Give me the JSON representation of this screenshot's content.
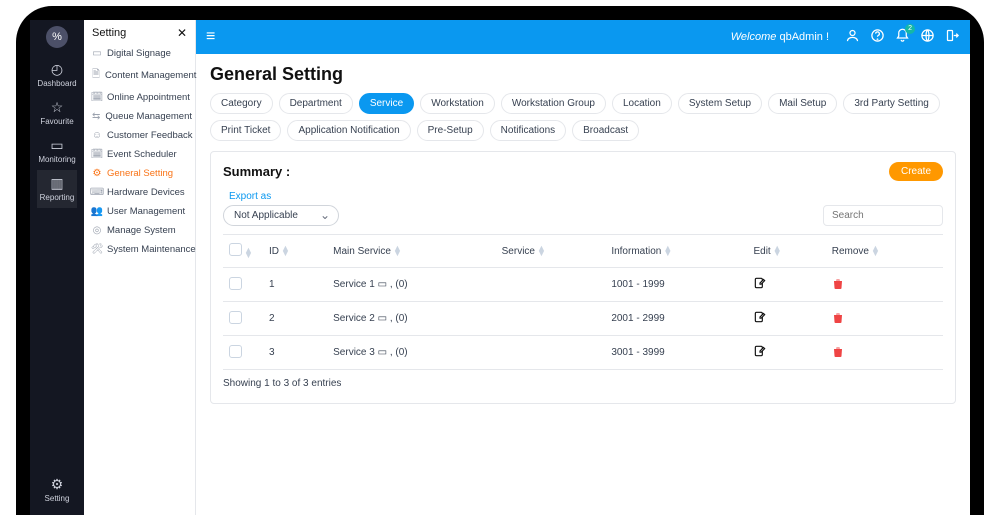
{
  "rail": {
    "items": [
      {
        "icon": "◴",
        "label": "Dashboard"
      },
      {
        "icon": "☆",
        "label": "Favourite"
      },
      {
        "icon": "▭",
        "label": "Monitoring"
      },
      {
        "icon": "▥",
        "label": "Reporting"
      }
    ],
    "bottom": {
      "icon": "⚙",
      "label": "Setting"
    }
  },
  "sidebar": {
    "title": "Setting",
    "items": [
      {
        "icon": "▭",
        "label": "Digital Signage"
      },
      {
        "icon": "🗎",
        "label": "Content Management"
      },
      {
        "icon": "🗓",
        "label": "Online Appointment"
      },
      {
        "icon": "⇆",
        "label": "Queue Management"
      },
      {
        "icon": "☺",
        "label": "Customer Feedback"
      },
      {
        "icon": "🗓",
        "label": "Event Scheduler"
      },
      {
        "icon": "⚙",
        "label": "General Setting"
      },
      {
        "icon": "⌨",
        "label": "Hardware Devices"
      },
      {
        "icon": "👥",
        "label": "User Management"
      },
      {
        "icon": "◎",
        "label": "Manage System"
      },
      {
        "icon": "🛠",
        "label": "System Maintenance"
      }
    ],
    "activeIndex": 6
  },
  "topbar": {
    "welcome_prefix": "Welcome",
    "username": "qbAdmin !",
    "notif_badge": "2"
  },
  "page": {
    "title": "General Setting",
    "tabs": [
      "Category",
      "Department",
      "Service",
      "Workstation",
      "Workstation Group",
      "Location",
      "System Setup",
      "Mail Setup",
      "3rd Party Setting",
      "Print Ticket",
      "Application Notification",
      "Pre-Setup",
      "Notifications",
      "Broadcast"
    ],
    "activeTabIndex": 2
  },
  "panel": {
    "summary_label": "Summary :",
    "create_label": "Create",
    "export_label": "Export as",
    "export_value": "Not Applicable",
    "search_placeholder": "Search",
    "columns": [
      "",
      "ID",
      "Main Service",
      "Service",
      "Information",
      "Edit",
      "Remove"
    ],
    "rows": [
      {
        "id": "1",
        "main": "Service 1 ▭ , (0)",
        "service": "",
        "info": "1001 - 1999"
      },
      {
        "id": "2",
        "main": "Service 2 ▭ , (0)",
        "service": "",
        "info": "2001 - 2999"
      },
      {
        "id": "3",
        "main": "Service 3 ▭ , (0)",
        "service": "",
        "info": "3001 - 3999"
      }
    ],
    "showing": "Showing 1 to 3 of 3 entries"
  },
  "colors": {
    "primary": "#0a98f0",
    "accent": "#ff9800",
    "danger": "#ef4444",
    "rail_bg": "#141722",
    "border": "#e5e7eb"
  }
}
